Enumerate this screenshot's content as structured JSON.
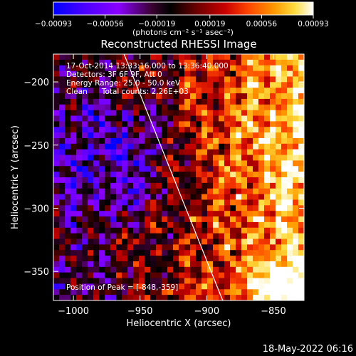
{
  "chart_data": {
    "type": "heatmap",
    "title": "Reconstructed RHESSI Image",
    "xlabel": "Heliocentric X (arcsec)",
    "ylabel": "Heliocentric Y (arcsec)",
    "xlim": [
      -1015,
      -827
    ],
    "ylim": [
      -373,
      -178
    ],
    "x_ticks": [
      -1000,
      -950,
      -900,
      -850
    ],
    "y_ticks": [
      -200,
      -250,
      -300,
      -350
    ],
    "x_tick_labels": [
      "−1000",
      "−950",
      "−900",
      "−850"
    ],
    "y_tick_labels": [
      "−200",
      "−250",
      "−300",
      "−350"
    ],
    "colorbar": {
      "range": [
        -0.00093,
        0.00093
      ],
      "ticks": [
        -0.00093,
        -0.00056,
        -0.00019,
        0.00019,
        0.00056,
        0.00093
      ],
      "tick_labels": [
        "−0.00093",
        "−0.00056",
        "−0.00019",
        "0.00019",
        "0.00056",
        "0.00093"
      ],
      "units_label": "(photons cm⁻² s⁻¹ asec⁻²)",
      "colormap": [
        "#0000ff",
        "#4b00ff",
        "#8a00ff",
        "#3a0030",
        "#000000",
        "#6a0000",
        "#c80000",
        "#ff4400",
        "#ff9900",
        "#ffdd40",
        "#ffffff"
      ]
    },
    "info_lines": [
      "17-Oct-2014 13:33:16.000 to 13:36:40.000",
      "Detectors: 3F 6F 9F, Att 0",
      "Energy Range: 25.0 - 50.0 keV",
      "Clean      Total counts: 2.26E+03"
    ],
    "peak_label": "Position of Peak = [-848,-359]",
    "peak": [
      -848,
      -359
    ],
    "limb_line": [
      [
        -962,
        -178
      ],
      [
        -888,
        -373
      ]
    ],
    "grid": false
  },
  "footer": {
    "timestamp": "18-May-2022 06:16"
  }
}
